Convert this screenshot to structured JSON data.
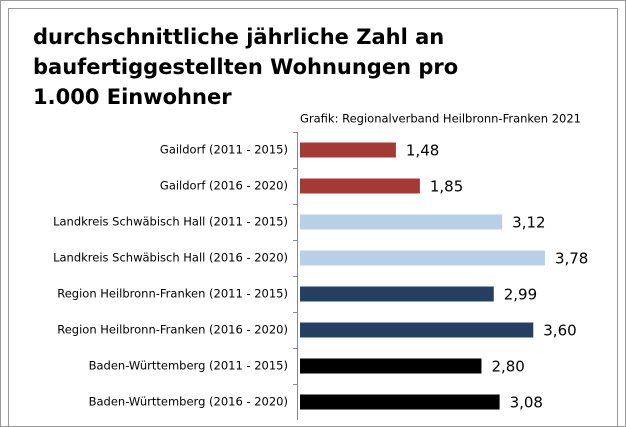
{
  "chart_data": {
    "type": "barh",
    "title": "durchschnittliche jährliche Zahl an baufertiggestellten Wohnungen pro 1.000 Einwohner",
    "source": "Grafik: Regionalverband Heilbronn-Franken 2021",
    "categories": [
      "Gaildorf (2011 - 2015)",
      "Gaildorf (2016 - 2020)",
      "Landkreis Schwäbisch Hall (2011 - 2015)",
      "Landkreis Schwäbisch Hall (2016 - 2020)",
      "Region Heilbronn-Franken (2011 - 2015)",
      "Region Heilbronn-Franken (2016 - 2020)",
      "Baden-Württemberg (2011 - 2015)",
      "Baden-Württemberg (2016 - 2020)"
    ],
    "values": [
      1.48,
      1.85,
      3.12,
      3.78,
      2.99,
      3.6,
      2.8,
      3.08
    ],
    "value_labels": [
      "1,48",
      "1,85",
      "3,12",
      "3,78",
      "2,99",
      "3,60",
      "2,80",
      "3,08"
    ],
    "colors": [
      "#a33a36",
      "#a33a36",
      "#b8cfe8",
      "#b8cfe8",
      "#253f63",
      "#253f63",
      "#000000",
      "#000000"
    ],
    "xlim": [
      0,
      5
    ]
  }
}
